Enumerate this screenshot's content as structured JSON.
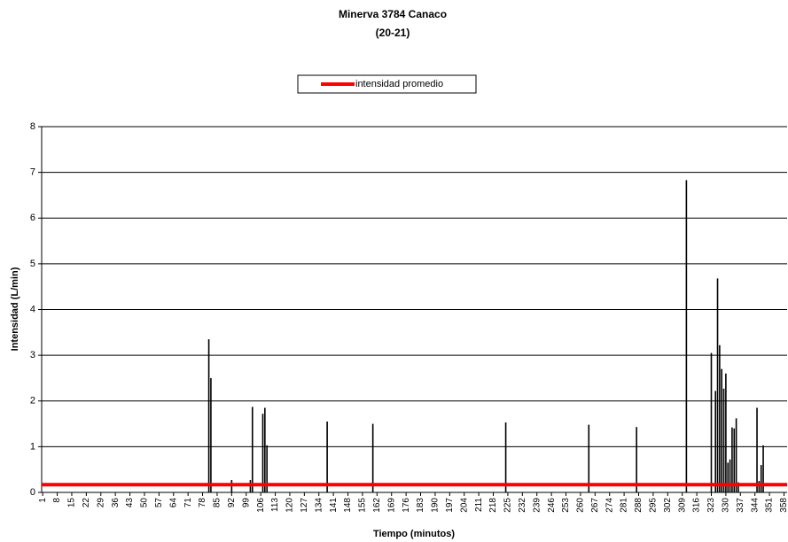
{
  "chart_data": {
    "type": "bar",
    "title": "Minerva 3784 Canaco",
    "subtitle": "(20-21)",
    "x_label": "Tiempo (minutos)",
    "y_label": "Intensidad (L/min)",
    "color": "#000000",
    "average_line": {
      "name": "intensidad promedio",
      "color": "#ff0000",
      "value": 0.17
    },
    "ylim": [
      0,
      8
    ],
    "yticks": [
      0,
      1,
      2,
      3,
      4,
      5,
      6,
      7,
      8
    ],
    "grid": true,
    "categories": [
      "1",
      null,
      null,
      null,
      null,
      null,
      null,
      "8",
      null,
      null,
      null,
      null,
      null,
      null,
      "15",
      null,
      null,
      null,
      null,
      null,
      null,
      "22",
      null,
      null,
      null,
      null,
      null,
      null,
      "29",
      null,
      null,
      null,
      null,
      null,
      null,
      "36",
      null,
      null,
      null,
      null,
      null,
      null,
      "43",
      null,
      null,
      null,
      null,
      null,
      null,
      "50",
      null,
      null,
      null,
      null,
      null,
      null,
      "57",
      null,
      null,
      null,
      null,
      null,
      null,
      "64",
      null,
      null,
      null,
      null,
      null,
      null,
      "71",
      null,
      null,
      null,
      null,
      null,
      null,
      "78",
      null,
      null,
      null,
      null,
      null,
      null,
      "85",
      null,
      null,
      null,
      null,
      null,
      null,
      "92",
      null,
      null,
      null,
      null,
      null,
      null,
      "99",
      null,
      null,
      null,
      null,
      null,
      null,
      "106",
      null,
      null,
      null,
      null,
      null,
      null,
      "113",
      null,
      null,
      null,
      null,
      null,
      null,
      "120",
      null,
      null,
      null,
      null,
      null,
      null,
      "127",
      null,
      null,
      null,
      null,
      null,
      null,
      "134",
      null,
      null,
      null,
      null,
      null,
      null,
      "141",
      null,
      null,
      null,
      null,
      null,
      null,
      "148",
      null,
      null,
      null,
      null,
      null,
      null,
      "155",
      null,
      null,
      null,
      null,
      null,
      null,
      "162",
      null,
      null,
      null,
      null,
      null,
      null,
      "169",
      null,
      null,
      null,
      null,
      null,
      null,
      "176",
      null,
      null,
      null,
      null,
      null,
      null,
      "183",
      null,
      null,
      null,
      null,
      null,
      null,
      "190",
      null,
      null,
      null,
      null,
      null,
      null,
      "197",
      null,
      null,
      null,
      null,
      null,
      null,
      "204",
      null,
      null,
      null,
      null,
      null,
      null,
      "211",
      null,
      null,
      null,
      null,
      null,
      null,
      "218",
      null,
      null,
      null,
      null,
      null,
      null,
      "225",
      null,
      null,
      null,
      null,
      null,
      null,
      "232",
      null,
      null,
      null,
      null,
      null,
      null,
      "239",
      null,
      null,
      null,
      null,
      null,
      null,
      "246",
      null,
      null,
      null,
      null,
      null,
      null,
      "253",
      null,
      null,
      null,
      null,
      null,
      null,
      "260",
      null,
      null,
      null,
      null,
      null,
      null,
      "267",
      null,
      null,
      null,
      null,
      null,
      null,
      "274",
      null,
      null,
      null,
      null,
      null,
      null,
      "281",
      null,
      null,
      null,
      null,
      null,
      null,
      "288",
      null,
      null,
      null,
      null,
      null,
      null,
      "295",
      null,
      null,
      null,
      null,
      null,
      null,
      "302",
      null,
      null,
      null,
      null,
      null,
      null,
      "309",
      null,
      null,
      null,
      null,
      null,
      null,
      "316",
      null,
      null,
      null,
      null,
      null,
      null,
      "323",
      null,
      null,
      null,
      null,
      null,
      null,
      "330",
      null,
      null,
      null,
      null,
      null,
      null,
      "337",
      null,
      null,
      null,
      null,
      null,
      null,
      "344",
      null,
      null,
      null,
      null,
      null,
      null,
      "351",
      null,
      null,
      null,
      null,
      null,
      null,
      "358",
      null
    ],
    "values": [
      0,
      0,
      0,
      0,
      0,
      0,
      0,
      0,
      0,
      0,
      0,
      0,
      0,
      0,
      0,
      0,
      0,
      0,
      0,
      0,
      0,
      0,
      0,
      0,
      0,
      0,
      0,
      0,
      0,
      0,
      0,
      0,
      0,
      0,
      0,
      0,
      0,
      0,
      0,
      0,
      0,
      0,
      0,
      0,
      0,
      0,
      0,
      0,
      0,
      0,
      0,
      0,
      0,
      0,
      0,
      0,
      0,
      0,
      0,
      0,
      0,
      0,
      0,
      0,
      0,
      0,
      0,
      0,
      0,
      0,
      0,
      0,
      0,
      0,
      0,
      0,
      0,
      0,
      0,
      0,
      3.35,
      2.5,
      0,
      0,
      0,
      0,
      0,
      0,
      0,
      0,
      0,
      0.27,
      0,
      0,
      0,
      0,
      0,
      0,
      0,
      0,
      0.27,
      1.87,
      0,
      0,
      0,
      0,
      1.72,
      1.85,
      1.03,
      0,
      0,
      0,
      0,
      0,
      0,
      0,
      0,
      0,
      0,
      0,
      0,
      0,
      0,
      0,
      0,
      0,
      0,
      0,
      0,
      0,
      0,
      0,
      0,
      0,
      0,
      0,
      0,
      1.55,
      0,
      0,
      0,
      0,
      0,
      0,
      0,
      0,
      0,
      0,
      0,
      0,
      0,
      0,
      0,
      0,
      0,
      0,
      0,
      0,
      0,
      1.5,
      0,
      0,
      0,
      0,
      0,
      0,
      0,
      0,
      0,
      0,
      0,
      0,
      0,
      0,
      0,
      0,
      0,
      0,
      0,
      0,
      0,
      0,
      0,
      0,
      0,
      0,
      0,
      0,
      0,
      0,
      0,
      0,
      0,
      0,
      0,
      0,
      0,
      0,
      0,
      0,
      0,
      0,
      0,
      0,
      0,
      0,
      0,
      0,
      0,
      0,
      0,
      0,
      0,
      0,
      0,
      0,
      0,
      0,
      0,
      0,
      0,
      0,
      0,
      1.53,
      0,
      0,
      0,
      0,
      0,
      0,
      0,
      0,
      0,
      0,
      0,
      0,
      0,
      0,
      0,
      0,
      0,
      0,
      0,
      0,
      0,
      0,
      0,
      0,
      0,
      0,
      0,
      0,
      0,
      0,
      0,
      0,
      0,
      0,
      0,
      0,
      0,
      0,
      0,
      1.48,
      0,
      0,
      0,
      0,
      0,
      0,
      0,
      0,
      0,
      0,
      0,
      0,
      0,
      0,
      0,
      0,
      0,
      0,
      0,
      0,
      0,
      0,
      1.43,
      0,
      0,
      0,
      0,
      0,
      0,
      0,
      0,
      0,
      0,
      0,
      0,
      0,
      0,
      0,
      0,
      0,
      0,
      0,
      0,
      0,
      0,
      0,
      6.83,
      0,
      0,
      0,
      0,
      0,
      0,
      0,
      0,
      0,
      0,
      0,
      3.05,
      0,
      2.22,
      4.68,
      3.22,
      2.7,
      2.27,
      2.6,
      0.65,
      0.72,
      1.42,
      1.4,
      1.62,
      0.22,
      0,
      0,
      0,
      0,
      0,
      0,
      0,
      0,
      1.85,
      0.25,
      0.6,
      1.03,
      0,
      0,
      0,
      0,
      0,
      0,
      0,
      0,
      0,
      0,
      0
    ]
  }
}
